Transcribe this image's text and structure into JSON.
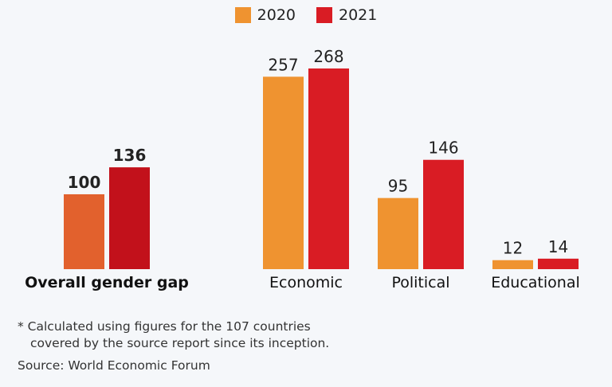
{
  "legend": [
    {
      "label": "2020",
      "color": "#ef9330"
    },
    {
      "label": "2021",
      "color": "#d91c24"
    }
  ],
  "chart_data": {
    "type": "bar",
    "categories": [
      "Overall gender gap",
      "Economic",
      "Political",
      "Educational"
    ],
    "series": [
      {
        "name": "2020",
        "values": [
          100,
          257,
          95,
          12
        ]
      },
      {
        "name": "2021",
        "values": [
          136,
          268,
          146,
          14
        ]
      }
    ],
    "highlight_category": "Overall gender gap",
    "highlight_colors": [
      "#e2612d",
      "#c2111b"
    ],
    "ylim": [
      0,
      268
    ],
    "grid": false,
    "legend_position": "top-center"
  },
  "notes": {
    "footnote_line1": "* Calculated using figures for the 107 countries",
    "footnote_line2": "covered by the source report since its inception.",
    "source": "Source: World Economic Forum"
  }
}
